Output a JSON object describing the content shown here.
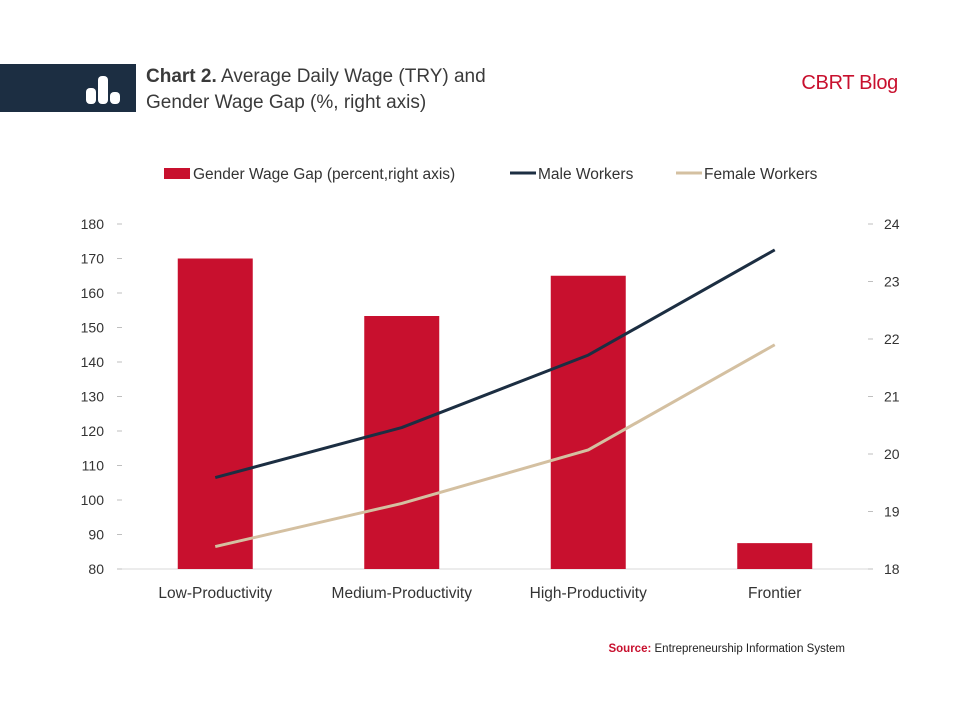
{
  "header": {
    "title_bold": "Chart 2.",
    "title_line1": "Average Daily Wage (TRY) and",
    "title_line2": "Gender Wage Gap (%, right axis)",
    "brand": "CBRT Blog",
    "icon": "bar-chart-icon"
  },
  "source": {
    "label": "Source:",
    "text": "Entrepreneurship Information System"
  },
  "colors": {
    "bar": "#c8102e",
    "male": "#1c2e42",
    "female": "#d4c0a1",
    "header_bar": "#1c2e42"
  },
  "chart_data": {
    "type": "bar",
    "categories": [
      "Low-Productivity",
      "Medium-Productivity",
      "High-Productivity",
      "Frontier"
    ],
    "series": [
      {
        "name": "Gender Wage Gap  (percent,right axis)",
        "type": "bar",
        "axis": "right",
        "values": [
          23.4,
          22.4,
          23.1,
          18.45
        ]
      },
      {
        "name": "Male Workers",
        "type": "line",
        "axis": "left",
        "values": [
          106.5,
          121.0,
          142.0,
          172.5
        ]
      },
      {
        "name": "Female Workers",
        "type": "line",
        "axis": "left",
        "values": [
          86.5,
          99.0,
          114.5,
          145.0
        ]
      }
    ],
    "y_left": {
      "min": 80,
      "max": 180,
      "step": 10,
      "ticks": [
        "80",
        "90",
        "100",
        "110",
        "120",
        "130",
        "140",
        "150",
        "160",
        "170",
        "180"
      ]
    },
    "y_right": {
      "min": 18,
      "max": 24,
      "step": 1,
      "ticks": [
        "18",
        "19",
        "20",
        "21",
        "22",
        "23",
        "24"
      ]
    },
    "legend_position": "top",
    "grid": false
  }
}
